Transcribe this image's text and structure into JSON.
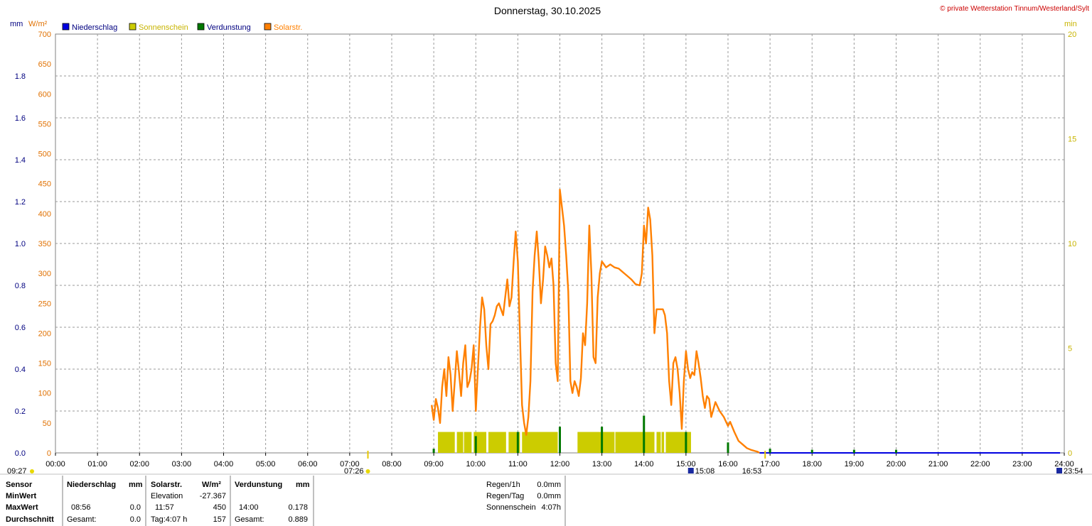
{
  "title": "Donnerstag, 30.10.2025",
  "copyright": "© private Wetterstation Tinnum/Westerland/Sylt",
  "units": {
    "left1": "mm",
    "left2": "W/m²",
    "right": "min"
  },
  "legend": [
    {
      "label": "Niederschlag",
      "color": "#0000e0",
      "text_color": "#000080"
    },
    {
      "label": "Sonnenschein",
      "color": "#cccc00",
      "text_color": "#c8b400"
    },
    {
      "label": "Verdunstung",
      "color": "#007800",
      "text_color": "#000080"
    },
    {
      "label": "Solarstr.",
      "color": "#ff8000",
      "text_color": "#ff8000"
    }
  ],
  "colors": {
    "solar": "#ff8000",
    "sun": "#cccc00",
    "evap": "#006400",
    "rain": "#0000e0",
    "mm_axis": "#000080",
    "wm2_axis": "#e07000",
    "min_axis": "#c8b400"
  },
  "time_markers": {
    "left": "09:27",
    "sunrise": "07:26",
    "max": "15:08",
    "sunset": "16:53",
    "right": "23:54"
  },
  "footer": {
    "headers": {
      "sensor": "Sensor",
      "niederschlag": "Niederschlag",
      "mm1": "mm",
      "solar": "Solarstr.",
      "wm2": "W/m²",
      "verdunstung": "Verdunstung",
      "mm2": "mm"
    },
    "rows": [
      {
        "label": "MinWert",
        "n_time": "",
        "n_val": "",
        "s_time": "Elevation",
        "s_val": "-27.367",
        "v_time": "",
        "v_val": ""
      },
      {
        "label": "MaxWert",
        "n_time": "08:56",
        "n_val": "0.0",
        "s_time": "11:57",
        "s_val": "450",
        "v_time": "14:00",
        "v_val": "0.178"
      },
      {
        "label": "Durchschnitt",
        "n_time": "Gesamt:",
        "n_val": "0.0",
        "s_time": "Tag:4:07 h",
        "s_val": "157",
        "v_time": "Gesamt:",
        "v_val": "0.889"
      }
    ],
    "summary": [
      {
        "label": "Regen/1h",
        "value": "0.0mm"
      },
      {
        "label": "Regen/Tag",
        "value": "0.0mm"
      },
      {
        "label": "Sonnenschein",
        "value": "4:07h"
      }
    ]
  },
  "chart_data": {
    "type": "line",
    "title": "Donnerstag, 30.10.2025",
    "x_unit": "hours",
    "xlim": [
      0,
      24
    ],
    "x_ticks": [
      "00:00",
      "01:00",
      "02:00",
      "03:00",
      "04:00",
      "05:00",
      "06:00",
      "07:00",
      "08:00",
      "09:00",
      "10:00",
      "11:00",
      "12:00",
      "13:00",
      "14:00",
      "15:00",
      "16:00",
      "17:00",
      "18:00",
      "19:00",
      "20:00",
      "21:00",
      "22:00",
      "23:00",
      "24:00"
    ],
    "axes": {
      "mm": {
        "range": [
          0,
          2.0
        ],
        "ticks": [
          "0.0",
          "0.2",
          "0.4",
          "0.6",
          "0.8",
          "1.0",
          "1.2",
          "1.4",
          "1.6",
          "1.8"
        ]
      },
      "wm2": {
        "range": [
          0,
          700
        ],
        "ticks": [
          "0",
          "50",
          "100",
          "150",
          "200",
          "250",
          "300",
          "350",
          "400",
          "450",
          "500",
          "550",
          "600",
          "650",
          "700"
        ]
      },
      "min": {
        "range": [
          0,
          20
        ],
        "ticks": [
          "0",
          "5",
          "10",
          "15",
          "20"
        ]
      }
    },
    "grid": true,
    "series": [
      {
        "name": "Solarstr.",
        "axis": "wm2",
        "color": "#ff8000",
        "points": [
          [
            8.95,
            80
          ],
          [
            9.0,
            55
          ],
          [
            9.05,
            90
          ],
          [
            9.1,
            75
          ],
          [
            9.15,
            50
          ],
          [
            9.2,
            110
          ],
          [
            9.25,
            140
          ],
          [
            9.3,
            95
          ],
          [
            9.35,
            160
          ],
          [
            9.4,
            130
          ],
          [
            9.45,
            70
          ],
          [
            9.5,
            120
          ],
          [
            9.55,
            170
          ],
          [
            9.6,
            135
          ],
          [
            9.65,
            95
          ],
          [
            9.7,
            150
          ],
          [
            9.75,
            180
          ],
          [
            9.8,
            110
          ],
          [
            9.85,
            120
          ],
          [
            9.9,
            140
          ],
          [
            9.95,
            180
          ],
          [
            10.0,
            70
          ],
          [
            10.05,
            140
          ],
          [
            10.1,
            210
          ],
          [
            10.15,
            260
          ],
          [
            10.2,
            240
          ],
          [
            10.25,
            180
          ],
          [
            10.3,
            140
          ],
          [
            10.35,
            215
          ],
          [
            10.4,
            220
          ],
          [
            10.45,
            230
          ],
          [
            10.5,
            245
          ],
          [
            10.55,
            250
          ],
          [
            10.6,
            240
          ],
          [
            10.65,
            230
          ],
          [
            10.7,
            260
          ],
          [
            10.75,
            290
          ],
          [
            10.8,
            245
          ],
          [
            10.85,
            260
          ],
          [
            10.9,
            320
          ],
          [
            10.95,
            370
          ],
          [
            11.0,
            320
          ],
          [
            11.05,
            200
          ],
          [
            11.1,
            80
          ],
          [
            11.15,
            50
          ],
          [
            11.2,
            30
          ],
          [
            11.25,
            60
          ],
          [
            11.3,
            120
          ],
          [
            11.35,
            270
          ],
          [
            11.4,
            330
          ],
          [
            11.45,
            370
          ],
          [
            11.5,
            320
          ],
          [
            11.55,
            250
          ],
          [
            11.6,
            290
          ],
          [
            11.65,
            345
          ],
          [
            11.7,
            330
          ],
          [
            11.75,
            310
          ],
          [
            11.8,
            325
          ],
          [
            11.85,
            280
          ],
          [
            11.9,
            150
          ],
          [
            11.95,
            120
          ],
          [
            12.0,
            440
          ],
          [
            12.05,
            410
          ],
          [
            12.1,
            380
          ],
          [
            12.15,
            330
          ],
          [
            12.2,
            270
          ],
          [
            12.25,
            120
          ],
          [
            12.3,
            100
          ],
          [
            12.35,
            120
          ],
          [
            12.4,
            110
          ],
          [
            12.45,
            95
          ],
          [
            12.5,
            125
          ],
          [
            12.55,
            200
          ],
          [
            12.6,
            180
          ],
          [
            12.65,
            250
          ],
          [
            12.7,
            380
          ],
          [
            12.75,
            300
          ],
          [
            12.8,
            160
          ],
          [
            12.85,
            150
          ],
          [
            12.9,
            260
          ],
          [
            12.95,
            300
          ],
          [
            13.0,
            320
          ],
          [
            13.05,
            315
          ],
          [
            13.1,
            310
          ],
          [
            13.2,
            315
          ],
          [
            13.3,
            310
          ],
          [
            13.4,
            308
          ],
          [
            13.5,
            302
          ],
          [
            13.6,
            296
          ],
          [
            13.7,
            290
          ],
          [
            13.8,
            282
          ],
          [
            13.9,
            280
          ],
          [
            13.95,
            300
          ],
          [
            14.0,
            380
          ],
          [
            14.05,
            350
          ],
          [
            14.1,
            410
          ],
          [
            14.15,
            390
          ],
          [
            14.2,
            330
          ],
          [
            14.25,
            200
          ],
          [
            14.3,
            240
          ],
          [
            14.35,
            240
          ],
          [
            14.4,
            240
          ],
          [
            14.45,
            240
          ],
          [
            14.5,
            230
          ],
          [
            14.55,
            200
          ],
          [
            14.6,
            120
          ],
          [
            14.65,
            80
          ],
          [
            14.7,
            150
          ],
          [
            14.75,
            160
          ],
          [
            14.8,
            140
          ],
          [
            14.85,
            100
          ],
          [
            14.9,
            40
          ],
          [
            14.95,
            120
          ],
          [
            15.0,
            170
          ],
          [
            15.05,
            140
          ],
          [
            15.1,
            125
          ],
          [
            15.15,
            135
          ],
          [
            15.2,
            130
          ],
          [
            15.25,
            170
          ],
          [
            15.3,
            150
          ],
          [
            15.35,
            125
          ],
          [
            15.4,
            95
          ],
          [
            15.45,
            75
          ],
          [
            15.5,
            95
          ],
          [
            15.55,
            90
          ],
          [
            15.6,
            60
          ],
          [
            15.7,
            85
          ],
          [
            15.8,
            70
          ],
          [
            15.9,
            60
          ],
          [
            16.0,
            45
          ],
          [
            16.05,
            52
          ],
          [
            16.15,
            35
          ],
          [
            16.25,
            20
          ],
          [
            16.35,
            14
          ],
          [
            16.45,
            8
          ],
          [
            16.55,
            5
          ],
          [
            16.65,
            3
          ],
          [
            16.7,
            2
          ],
          [
            16.75,
            0
          ]
        ]
      },
      {
        "name": "Sonnenschein",
        "axis": "min",
        "color": "#cccc00",
        "bars": [
          [
            9.1,
            9.5
          ],
          [
            9.55,
            9.7
          ],
          [
            9.72,
            9.9
          ],
          [
            9.95,
            10.25
          ],
          [
            10.3,
            10.72
          ],
          [
            10.78,
            11.05
          ],
          [
            11.1,
            11.95
          ],
          [
            12.42,
            13.3
          ],
          [
            13.32,
            14.25
          ],
          [
            14.3,
            14.4
          ],
          [
            14.42,
            14.48
          ],
          [
            14.52,
            15.12
          ]
        ]
      },
      {
        "name": "Verdunstung",
        "axis": "mm",
        "color": "#007800",
        "spikes": [
          [
            9.0,
            0.02
          ],
          [
            10.0,
            0.08
          ],
          [
            11.0,
            0.1
          ],
          [
            12.0,
            0.125
          ],
          [
            13.0,
            0.125
          ],
          [
            14.0,
            0.178
          ],
          [
            15.0,
            0.1
          ],
          [
            16.0,
            0.05
          ],
          [
            17.0,
            0.02
          ],
          [
            18.0,
            0.015
          ],
          [
            19.0,
            0.015
          ],
          [
            20.0,
            0.015
          ]
        ]
      }
    ]
  }
}
